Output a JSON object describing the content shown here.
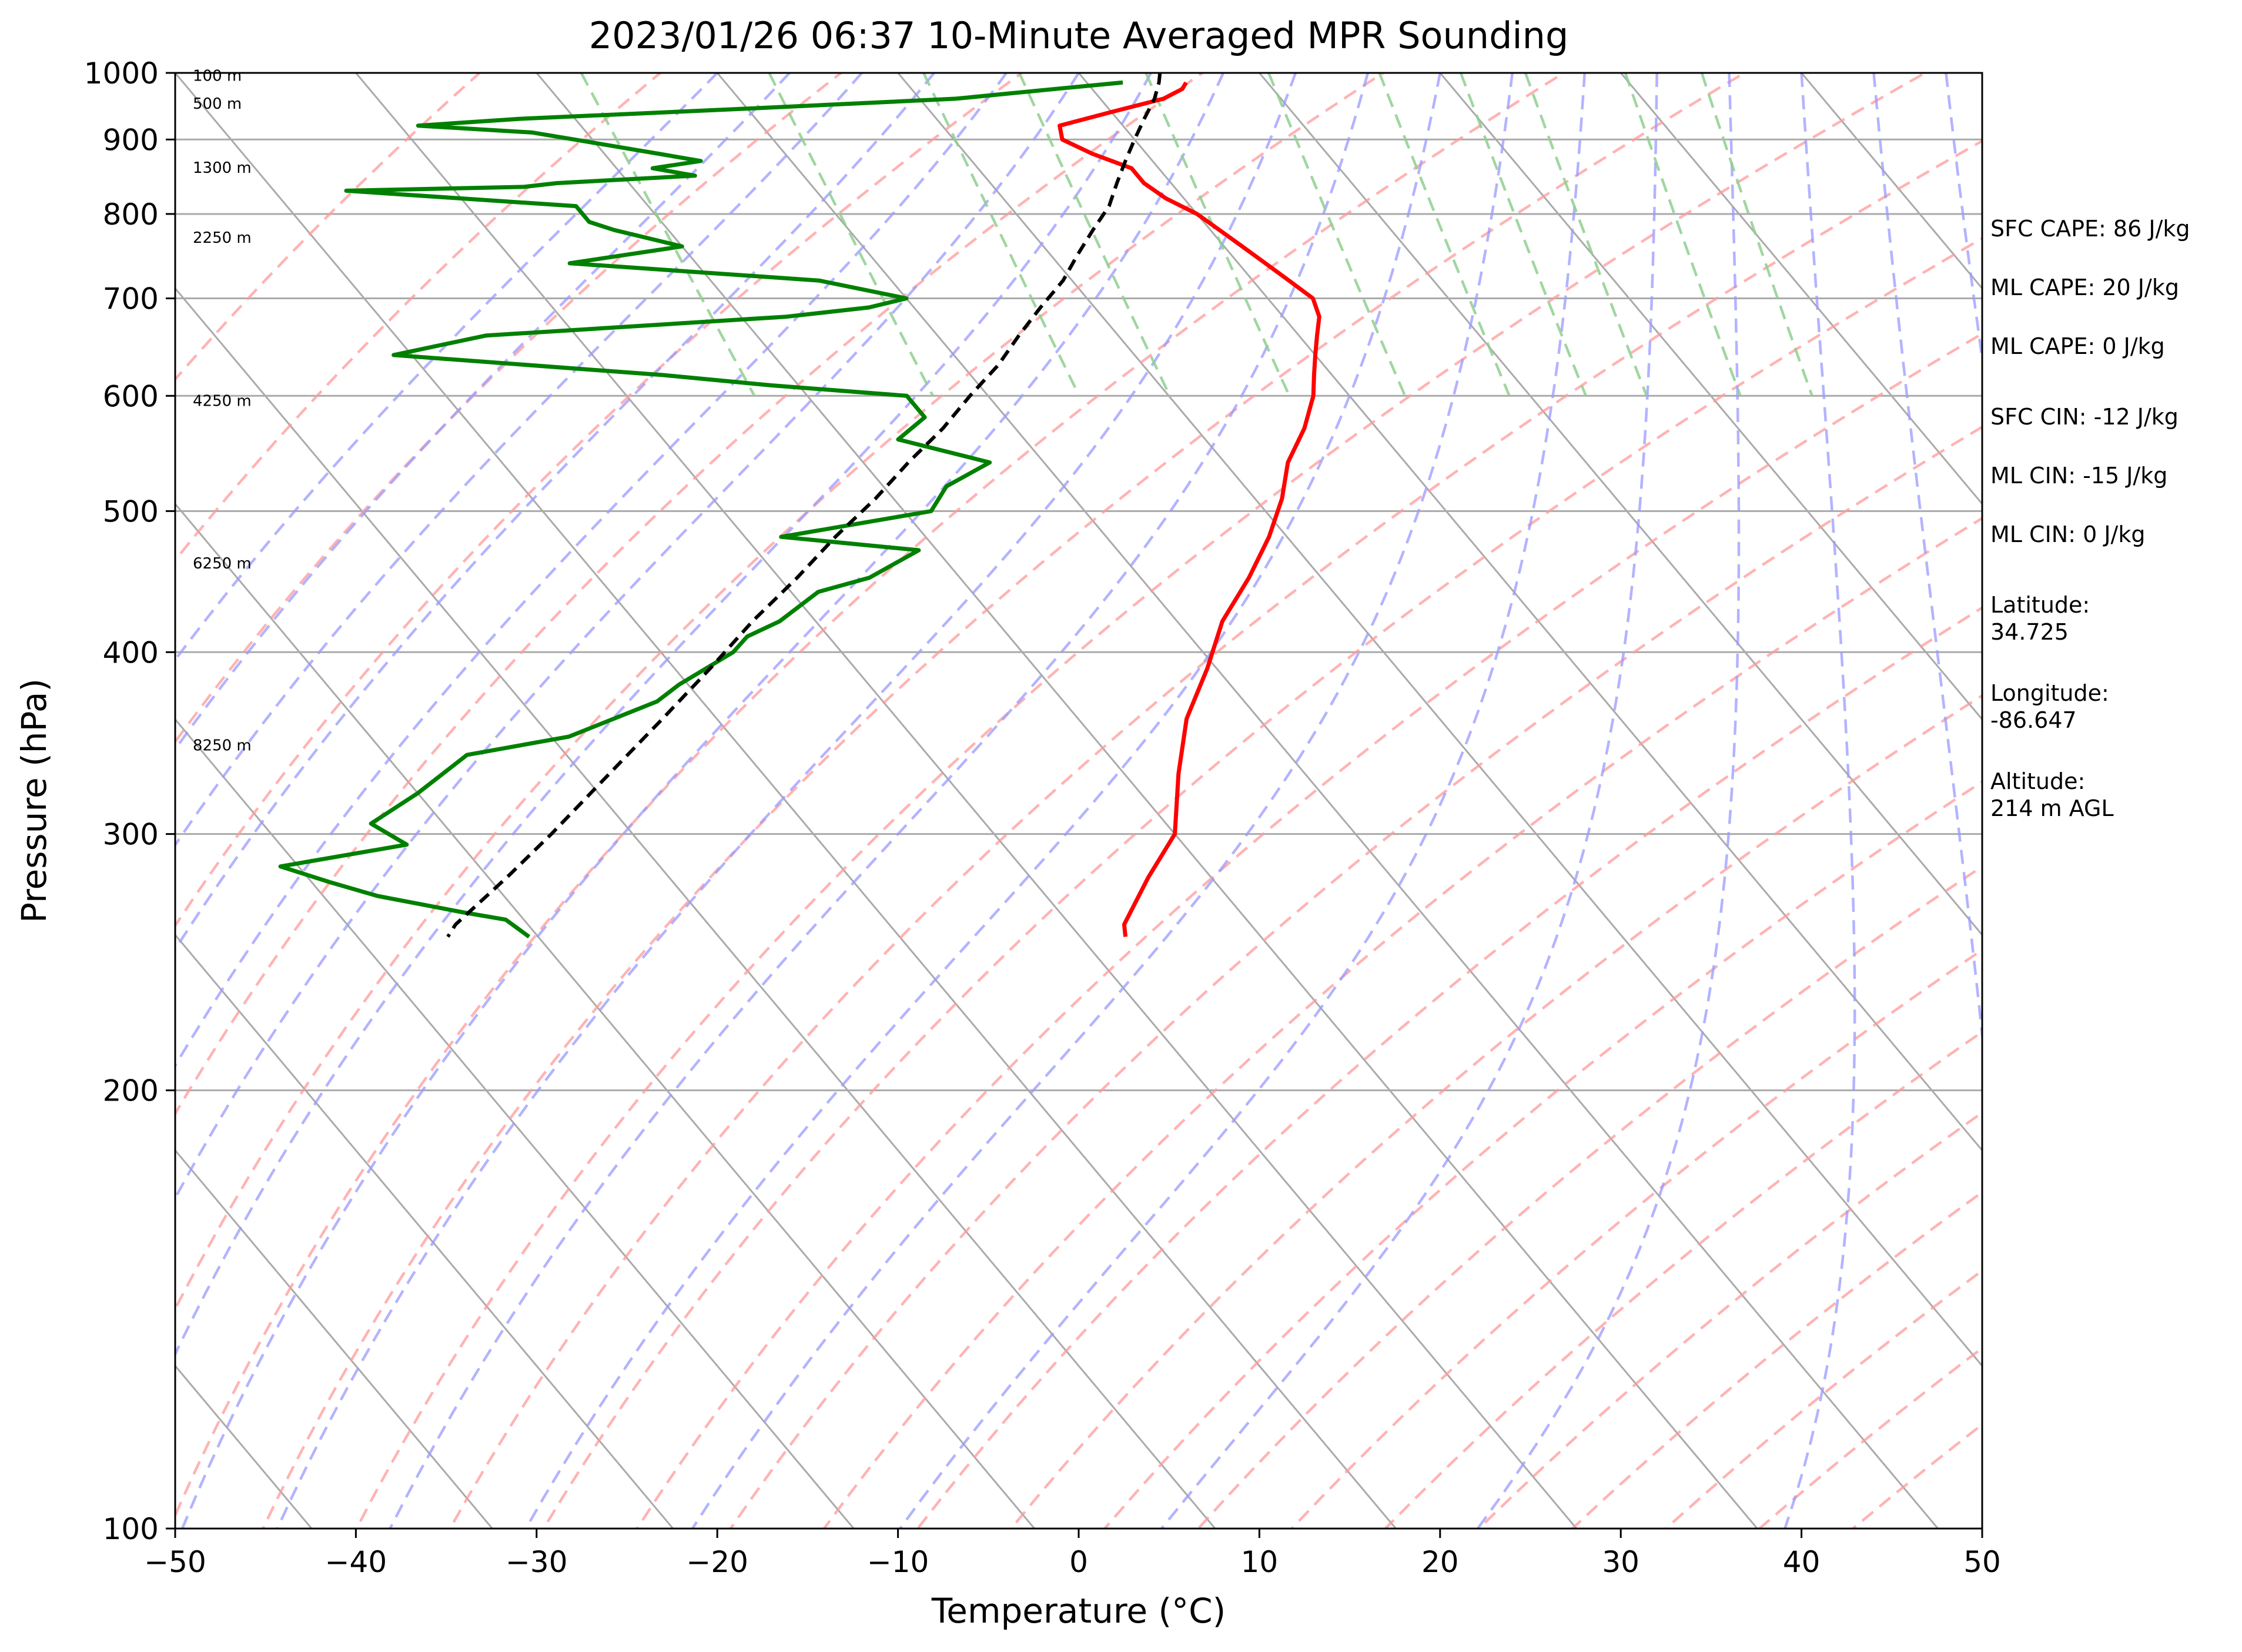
{
  "chart_data": {
    "type": "line",
    "subtype": "skew-t log-p sounding",
    "title": "2023/01/26 06:37 10-Minute Averaged MPR Sounding",
    "xlabel": "Temperature (°C)",
    "ylabel": "Pressure (hPa)",
    "xlim": [
      -50,
      50
    ],
    "ylim": [
      1000,
      100
    ],
    "y_scale": "log",
    "x_ticks": [
      "−50",
      "−40",
      "−30",
      "−20",
      "−10",
      "0",
      "10",
      "20",
      "30",
      "40",
      "50"
    ],
    "y_ticks": [
      1000,
      900,
      800,
      700,
      600,
      500,
      400,
      300,
      200,
      100
    ],
    "grid": true,
    "series": [
      {
        "role": "temperature",
        "color": "#ff0000",
        "pressure": [
          985,
          975,
          960,
          940,
          920,
          900,
          880,
          860,
          840,
          820,
          800,
          780,
          760,
          740,
          720,
          700,
          680,
          660,
          640,
          620,
          600,
          570,
          540,
          510,
          480,
          450,
          420,
          390,
          360,
          330,
          300,
          280,
          260,
          255
        ],
        "temperature": [
          5.5,
          5.0,
          3.5,
          0.0,
          -3.5,
          -4.0,
          -3.0,
          -1.5,
          -1.5,
          -1.0,
          0.0,
          0.5,
          1.0,
          1.5,
          2.0,
          2.5,
          2.0,
          1.0,
          0.0,
          -1.0,
          -2.0,
          -4.0,
          -6.5,
          -8.5,
          -11.0,
          -14.0,
          -17.5,
          -20.5,
          -24.0,
          -27.0,
          -30.0,
          -33.5,
          -37.0,
          -37.5
        ]
      },
      {
        "role": "dewpoint",
        "color": "#008000",
        "pressure": [
          985,
          975,
          960,
          945,
          930,
          920,
          910,
          900,
          880,
          870,
          860,
          850,
          840,
          835,
          830,
          810,
          790,
          780,
          760,
          740,
          720,
          700,
          690,
          680,
          660,
          640,
          620,
          610,
          600,
          580,
          560,
          540,
          520,
          500,
          480,
          470,
          450,
          440,
          420,
          410,
          400,
          380,
          370,
          350,
          340,
          320,
          305,
          295,
          285,
          278,
          272,
          265,
          262,
          255
        ],
        "temperature": [
          2.0,
          -2.0,
          -8.0,
          -20.0,
          -33.0,
          -39.0,
          -33.0,
          -31.0,
          -27.0,
          -25.0,
          -28.0,
          -26.0,
          -34.0,
          -36.0,
          -46.0,
          -34.0,
          -34.0,
          -33.0,
          -30.0,
          -37.0,
          -24.0,
          -20.0,
          -22.5,
          -27.5,
          -45.0,
          -51.0,
          -37.0,
          -31.5,
          -24.5,
          -24.5,
          -27.0,
          -23.0,
          -26.5,
          -28.5,
          -38.0,
          -31.0,
          -35.0,
          -38.5,
          -42.0,
          -44.5,
          -46.0,
          -50.5,
          -52.5,
          -59.0,
          -65.5,
          -70.0,
          -74.0,
          -73.0,
          -81.0,
          -79.0,
          -77.0,
          -73.0,
          -71.0,
          -70.5
        ]
      },
      {
        "role": "parcel",
        "color": "#000000",
        "style": "dashed",
        "pressure": [
          1000,
          985,
          960,
          930,
          900,
          870,
          840,
          810,
          780,
          750,
          720,
          690,
          660,
          630,
          600,
          570,
          540,
          510,
          480,
          450,
          420,
          390,
          360,
          330,
          300,
          280,
          260,
          255
        ],
        "temperature": [
          4.5,
          4.0,
          3.0,
          1.5,
          0.0,
          -1.5,
          -3.0,
          -4.5,
          -6.5,
          -8.5,
          -10.5,
          -13.0,
          -15.5,
          -18.0,
          -21.0,
          -24.0,
          -27.5,
          -31.0,
          -35.0,
          -39.0,
          -43.5,
          -48.0,
          -53.0,
          -58.5,
          -64.5,
          -69.0,
          -74.0,
          -75.0
        ]
      }
    ],
    "height_labels": [
      {
        "label": "100 m",
        "pressure": 995
      },
      {
        "label": "500 m",
        "pressure": 952
      },
      {
        "label": "1300 m",
        "pressure": 860
      },
      {
        "label": "2250 m",
        "pressure": 770
      },
      {
        "label": "4250 m",
        "pressure": 595
      },
      {
        "label": "6250 m",
        "pressure": 460
      },
      {
        "label": "8250 m",
        "pressure": 345
      }
    ],
    "annotations": [
      "SFC CAPE: 86 J/kg",
      "ML CAPE: 20 J/kg",
      "ML CAPE: 0 J/kg",
      "SFC CIN: -12 J/kg",
      "ML CIN: -15 J/kg",
      "ML CIN: 0 J/kg",
      "Latitude:\n34.725",
      "Longitude:\n-86.647",
      "Altitude:\n214 m AGL"
    ],
    "reference_lines": {
      "dry_adiabat_color": "#ff9999",
      "moist_adiabat_color": "#9999ff",
      "mixing_ratio_color": "#8fcf8f",
      "isotherm_color": "#aaaaaa"
    }
  }
}
